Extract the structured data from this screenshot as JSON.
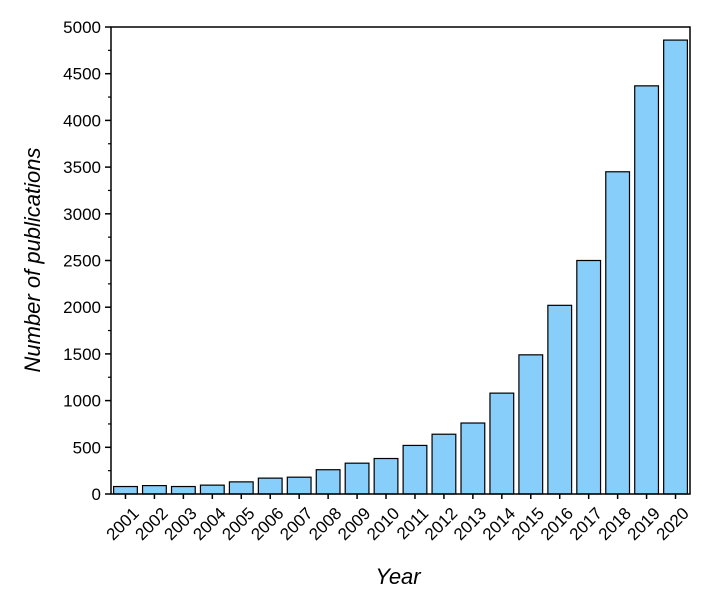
{
  "chart_data": {
    "type": "bar",
    "title": "",
    "xlabel": "Year",
    "ylabel": "Number of publications",
    "categories": [
      "2001",
      "2002",
      "2003",
      "2004",
      "2005",
      "2006",
      "2007",
      "2008",
      "2009",
      "2010",
      "2011",
      "2012",
      "2013",
      "2014",
      "2015",
      "2016",
      "2017",
      "2018",
      "2019",
      "2020"
    ],
    "values": [
      80,
      90,
      80,
      95,
      130,
      170,
      180,
      260,
      330,
      380,
      520,
      640,
      760,
      1080,
      1490,
      2020,
      2500,
      3450,
      4370,
      4860
    ],
    "ylim": [
      0,
      5000
    ],
    "yticks": [
      0,
      500,
      1000,
      1500,
      2000,
      2500,
      3000,
      3500,
      4000,
      4500,
      5000
    ],
    "grid": false,
    "legend": "none",
    "colors": {
      "bar_fill": "#87cefa",
      "bar_stroke": "#000000",
      "axis": "#000000"
    }
  }
}
